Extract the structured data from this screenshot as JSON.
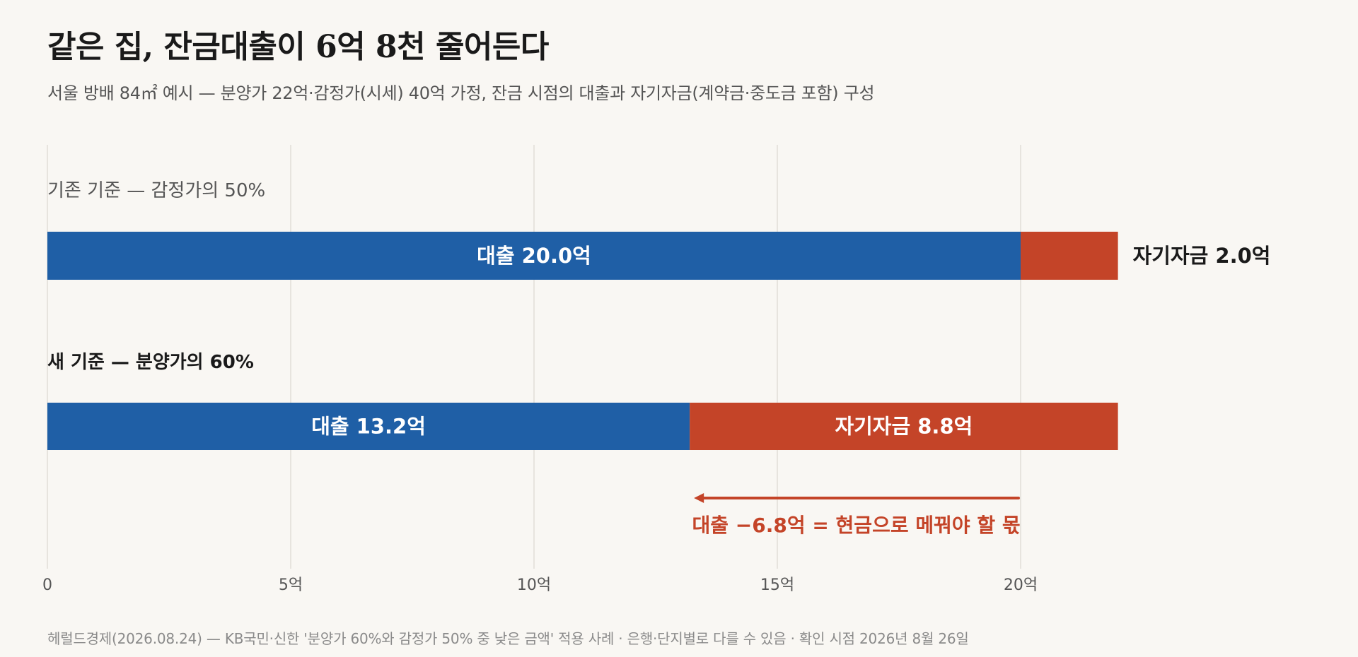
{
  "title": "같은 집, 잔금대출이 6억 8천 줄어든다",
  "subtitle": "서울 방배 84㎡ 예시 — 분양가 22억·감정가(시세) 40억 가정, 잔금 시점의 대출과 자기자금(계약금·중도금 포함) 구성",
  "footer": "헤럴드경제(2026.08.24) — KB국민·신한 '분양가 60%와 감정가 50% 중 낮은 금액' 적용 사례 · 은행·단지별로 다를 수 있음 · 확인 시점 2026년 8월 26일",
  "colors": {
    "loan": "#1f5fa6",
    "own_funds": "#c44428",
    "grid": "#e1ded8",
    "annotation": "#c44428"
  },
  "chart_data": {
    "type": "bar",
    "orientation": "horizontal",
    "stacked": true,
    "x_range": [
      0,
      22
    ],
    "x_ticks": [
      {
        "value": 0,
        "label": "0"
      },
      {
        "value": 5,
        "label": "5억"
      },
      {
        "value": 10,
        "label": "10억"
      },
      {
        "value": 15,
        "label": "15억"
      },
      {
        "value": 20,
        "label": "20억"
      }
    ],
    "grid": true,
    "rows": [
      {
        "label": "기존 기준 — 감정가의 50%",
        "emphasis": false,
        "loan": 20.0,
        "own_funds": 2.0,
        "loan_label": "대출 20.0억",
        "own_funds_label": "자기자금 2.0억",
        "own_funds_label_position": "outside"
      },
      {
        "label": "새 기준 — 분양가의 60%",
        "emphasis": true,
        "loan": 13.2,
        "own_funds": 8.8,
        "loan_label": "대출 13.2억",
        "own_funds_label": "자기자금 8.8억",
        "own_funds_label_position": "inside"
      }
    ],
    "annotation": {
      "from": 20.0,
      "to": 13.2,
      "text": "대출 −6.8억 = 현금으로 메꿔야 할 몫"
    }
  }
}
